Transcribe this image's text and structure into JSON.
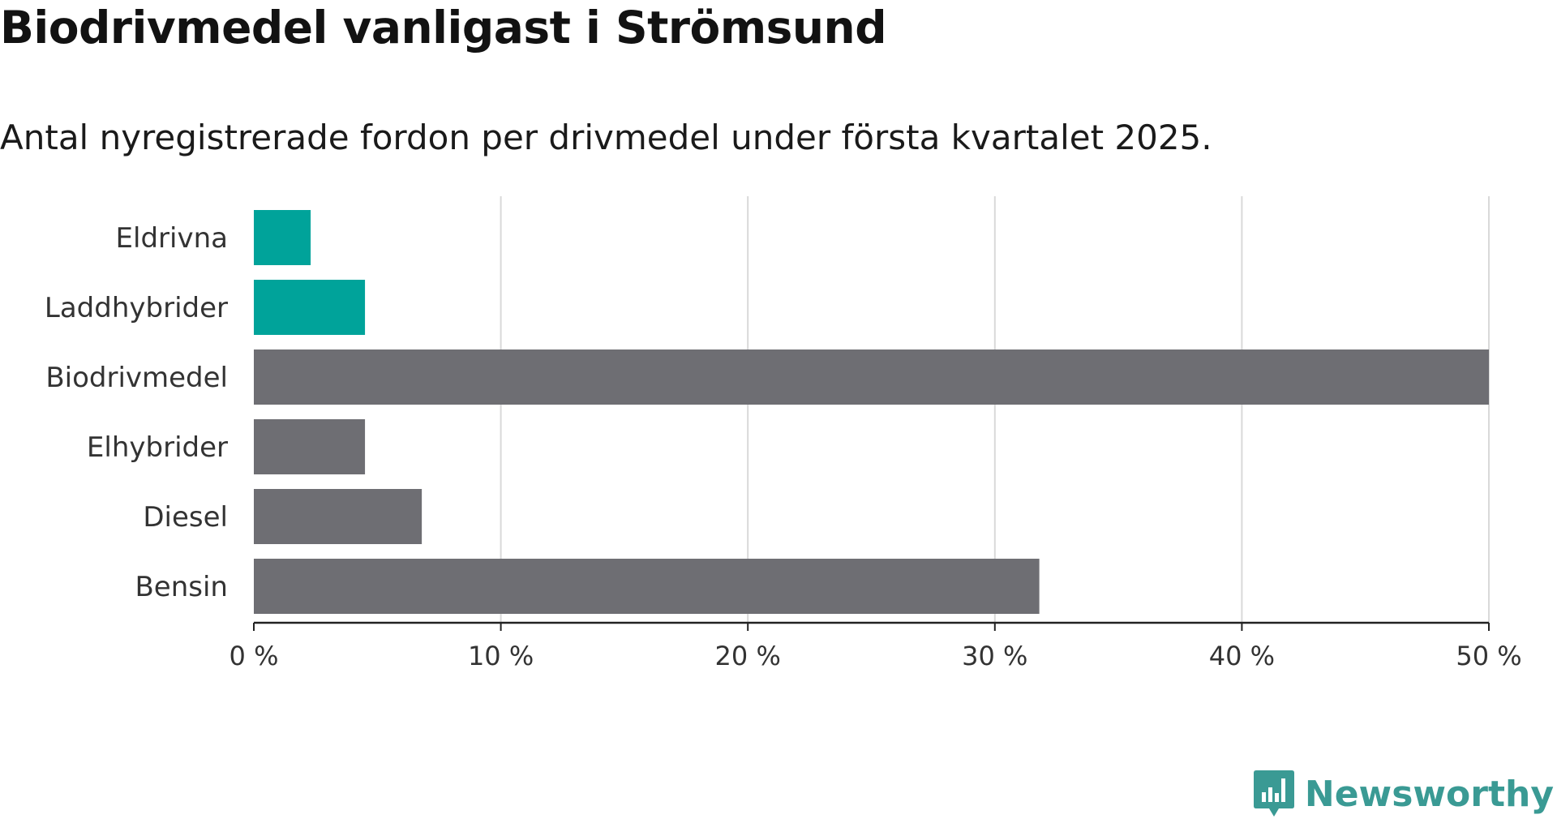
{
  "header": {
    "title": "Biodrivmedel vanligast i Strömsund",
    "subtitle": "Antal nyregistrerade fordon per drivmedel under första kvartalet 2025."
  },
  "brand": {
    "name": "Newsworthy",
    "icon": "newsworthy-logo-icon",
    "color": "#3a9a94"
  },
  "colors": {
    "highlight": "#00a39a",
    "default": "#6e6e73",
    "grid": "#d9d9d9",
    "axis": "#222222"
  },
  "chart_data": {
    "type": "bar",
    "orientation": "horizontal",
    "title": "Biodrivmedel vanligast i Strömsund",
    "subtitle": "Antal nyregistrerade fordon per drivmedel under första kvartalet 2025.",
    "categories": [
      "Eldrivna",
      "Laddhybrider",
      "Biodrivmedel",
      "Elhybrider",
      "Diesel",
      "Bensin"
    ],
    "values": [
      2.3,
      4.5,
      50.0,
      4.5,
      6.8,
      31.8
    ],
    "highlighted": [
      true,
      true,
      false,
      false,
      false,
      false
    ],
    "unit": "%",
    "xlim": [
      0,
      50
    ],
    "ticks": [
      0,
      10,
      20,
      30,
      40,
      50
    ],
    "tick_labels": [
      "0 %",
      "10 %",
      "20 %",
      "30 %",
      "40 %",
      "50 %"
    ],
    "grid": true,
    "legend": "none"
  }
}
